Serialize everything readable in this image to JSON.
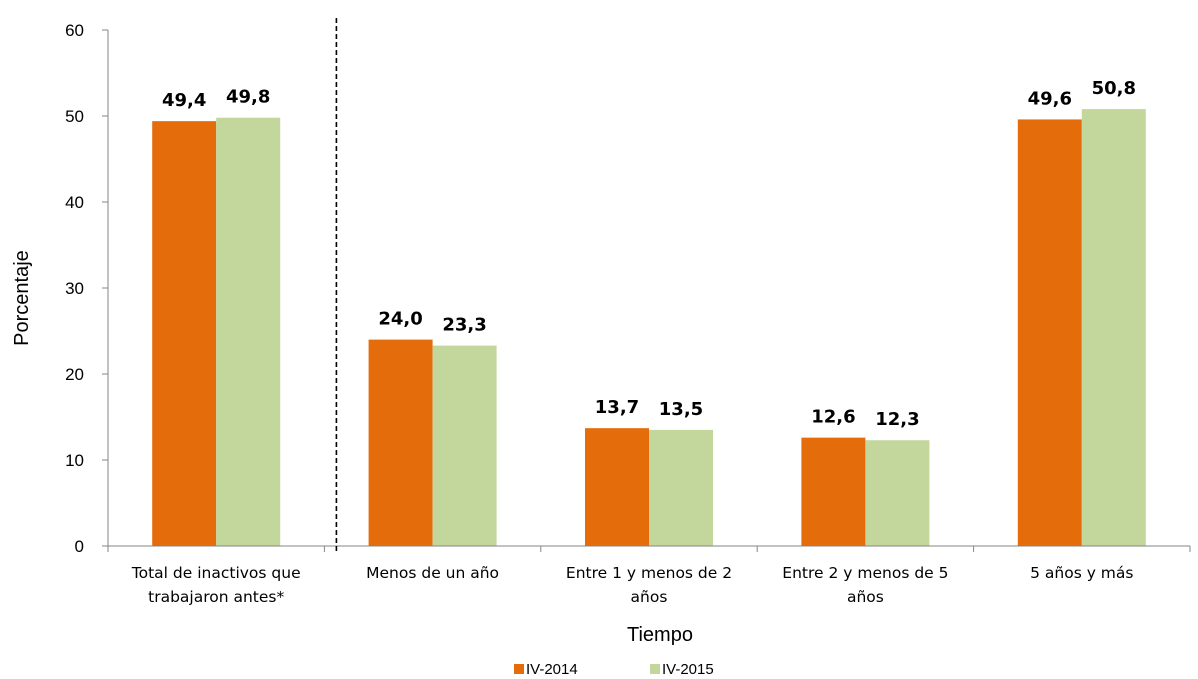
{
  "chart_data": {
    "type": "bar",
    "categories": [
      [
        "Total de inactivos que",
        "trabajaron antes*"
      ],
      [
        "Menos de un año"
      ],
      [
        "Entre 1 y menos de 2",
        "años"
      ],
      [
        "Entre 2 y menos de 5",
        "años"
      ],
      [
        "5 años y más"
      ]
    ],
    "series": [
      {
        "name": "IV-2014",
        "color": "#E46C0A",
        "values": [
          49.4,
          24.0,
          13.7,
          12.6,
          49.6
        ],
        "labels": [
          "49,4",
          "24,0",
          "13,7",
          "12,6",
          "49,6"
        ]
      },
      {
        "name": "IV-2015",
        "color": "#C3D69B",
        "values": [
          49.8,
          23.3,
          13.5,
          12.3,
          50.8
        ],
        "labels": [
          "49,8",
          "23,3",
          "13,5",
          "12,3",
          "50,8"
        ]
      }
    ],
    "xlabel": "Tiempo",
    "ylabel": "Porcentaje",
    "ylim": [
      0,
      60
    ],
    "yticks": [
      0,
      10,
      20,
      30,
      40,
      50,
      60
    ],
    "grid": false,
    "separator_after_category": 0,
    "legend_position": "bottom-center"
  }
}
